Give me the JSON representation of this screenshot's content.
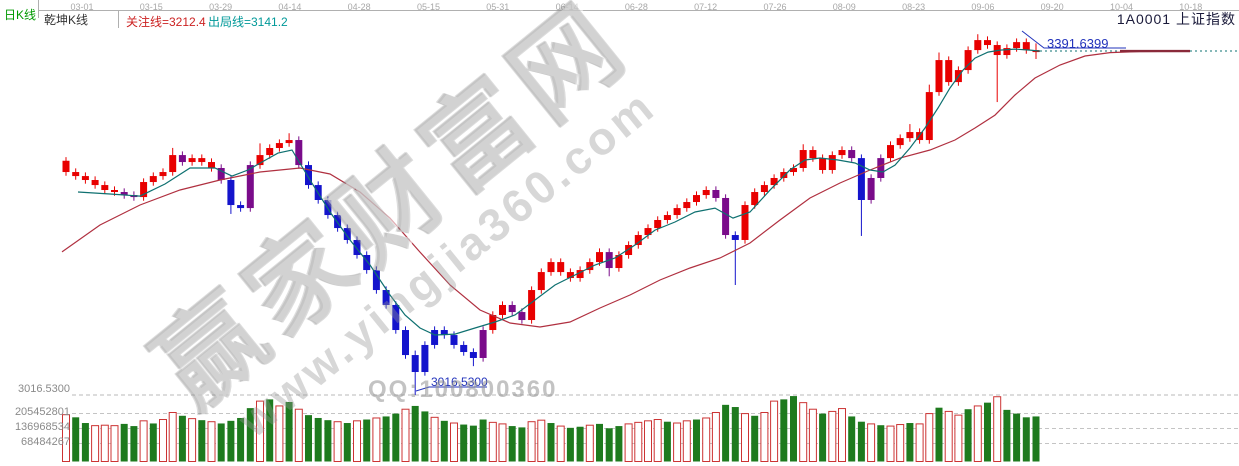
{
  "header": {
    "period_label": "日K线",
    "indicator_name": "乾坤K线",
    "attention_line_label": "关注线=3212.4",
    "exit_line_label": "出局线=3141.2",
    "symbol_label": "1A0001  上证指数"
  },
  "date_axis": {
    "labels": [
      "03-01",
      "03-15",
      "03-29",
      "04-14",
      "04-28",
      "05-15",
      "05-31",
      "06-14",
      "06-28",
      "07-12",
      "07-26",
      "08-09",
      "08-23",
      "09-06",
      "09-20",
      "10-04",
      "10-18"
    ]
  },
  "price_axis": {
    "min_label": "3016.5300"
  },
  "volume_axis": {
    "labels": [
      "205452801",
      "136968534",
      "68484267"
    ],
    "values": [
      205452801,
      136968534,
      68484267
    ]
  },
  "annotations": {
    "last_price_label": "3391.6399",
    "low_price_label": "3016.5300"
  },
  "watermark": {
    "title": "赢家财富网",
    "url": "www.yingjia360.com",
    "qq": "QQ:100800360"
  },
  "colors": {
    "candle_up": "#e80000",
    "candle_special": "#7a0b8a",
    "candle_down": "#1414cc",
    "ma_fast": "#0e7070",
    "ma_slow": "#b03040",
    "flat_line": "#8a2a3a",
    "vol_up_stroke": "#cc3333",
    "vol_down_fill": "#1e7a1e",
    "grid": "#c4c4c4",
    "annotation_blue": "#2233bb",
    "period_green": "#009900",
    "attention_red": "#cc2222",
    "exit_teal": "#009999"
  },
  "chart_data": {
    "type": "candlestick",
    "title": "1A0001 上证指数 日K线 (乾坤K线)",
    "indicator": {
      "name": "乾坤K线",
      "attention_line": 3212.4,
      "exit_line": 3141.2
    },
    "ylim": [
      3016.53,
      3414.6
    ],
    "last_close": 3391.6399,
    "min_price": 3016.53,
    "volume_unit": 68484267,
    "x_dates": [
      "03-01",
      "03-15",
      "03-29",
      "04-14",
      "04-28",
      "05-15",
      "05-31",
      "06-14",
      "06-28",
      "07-12",
      "07-26",
      "08-09",
      "08-23",
      "09-06",
      "09-20",
      "10-04",
      "10-18"
    ],
    "candles": [
      [
        3272.0,
        3276.0,
        3255.7,
        3259.7,
        "r",
        200,
        "r"
      ],
      [
        3259.7,
        3263.7,
        3251.3,
        3255.3,
        "r",
        188,
        "g"
      ],
      [
        3255.3,
        3259.3,
        3247.0,
        3251.0,
        "r",
        162,
        "g"
      ],
      [
        3251.0,
        3255.0,
        3241.5,
        3245.5,
        "r",
        150,
        "r"
      ],
      [
        3245.5,
        3249.5,
        3236.1,
        3240.1,
        "r",
        152,
        "r"
      ],
      [
        3240.1,
        3244.1,
        3233.9,
        3237.9,
        "r",
        150,
        "r"
      ],
      [
        3237.9,
        3241.9,
        3230.6,
        3234.6,
        "p",
        158,
        "g"
      ],
      [
        3234.6,
        3238.6,
        3228.4,
        3232.4,
        "p",
        148,
        "g"
      ],
      [
        3232.4,
        3252.8,
        3228.4,
        3248.8,
        "r",
        172,
        "r"
      ],
      [
        3248.8,
        3259.3,
        3244.8,
        3255.3,
        "r",
        160,
        "g"
      ],
      [
        3255.3,
        3263.7,
        3251.3,
        3259.7,
        "r",
        178,
        "r"
      ],
      [
        3259.7,
        3286.0,
        3255.7,
        3278.2,
        "r",
        210,
        "r"
      ],
      [
        3278.2,
        3282.2,
        3266.6,
        3270.6,
        "p",
        195,
        "g"
      ],
      [
        3270.6,
        3278.9,
        3266.6,
        3274.9,
        "r",
        182,
        "r"
      ],
      [
        3274.9,
        3278.9,
        3266.6,
        3270.6,
        "r",
        175,
        "g"
      ],
      [
        3270.6,
        3274.6,
        3260.1,
        3264.1,
        "r",
        168,
        "r"
      ],
      [
        3264.1,
        3268.1,
        3247.0,
        3251.0,
        "p",
        160,
        "g"
      ],
      [
        3251.0,
        3255.0,
        3214.0,
        3223.7,
        "b",
        172,
        "g"
      ],
      [
        3223.7,
        3227.7,
        3216.4,
        3220.4,
        "b",
        185,
        "g"
      ],
      [
        3220.4,
        3271.3,
        3216.4,
        3267.3,
        "p",
        230,
        "g"
      ],
      [
        3267.3,
        3291.0,
        3263.3,
        3278.2,
        "r",
        262,
        "r"
      ],
      [
        3278.2,
        3289.9,
        3274.2,
        3285.9,
        "r",
        270,
        "g"
      ],
      [
        3285.9,
        3295.3,
        3281.9,
        3291.3,
        "r",
        240,
        "r"
      ],
      [
        3291.3,
        3302.0,
        3287.3,
        3294.6,
        "r",
        258,
        "g"
      ],
      [
        3294.6,
        3298.6,
        3263.3,
        3267.3,
        "p",
        225,
        "r"
      ],
      [
        3267.3,
        3271.3,
        3241.5,
        3245.5,
        "b",
        198,
        "g"
      ],
      [
        3245.5,
        3249.5,
        3225.2,
        3229.2,
        "b",
        185,
        "g"
      ],
      [
        3229.2,
        3233.2,
        3208.8,
        3212.8,
        "b",
        175,
        "g"
      ],
      [
        3212.8,
        3216.8,
        3194.6,
        3198.6,
        "b",
        168,
        "r"
      ],
      [
        3198.6,
        3202.6,
        3181.6,
        3185.6,
        "b",
        162,
        "g"
      ],
      [
        3185.6,
        3189.6,
        3165.2,
        3169.2,
        "b",
        172,
        "r"
      ],
      [
        3169.2,
        3173.2,
        3148.8,
        3152.8,
        "b",
        178,
        "g"
      ],
      [
        3152.8,
        3156.8,
        3127.0,
        3131.0,
        "b",
        185,
        "r"
      ],
      [
        3131.0,
        3135.0,
        3110.7,
        3114.7,
        "b",
        192,
        "g"
      ],
      [
        3114.7,
        3118.7,
        3083.4,
        3087.4,
        "b",
        205,
        "g"
      ],
      [
        3087.4,
        3091.4,
        3056.1,
        3060.1,
        "b",
        225,
        "r"
      ],
      [
        3060.1,
        3065.0,
        3016.53,
        3041.6,
        "b",
        240,
        "g"
      ],
      [
        3041.6,
        3075.1,
        3037.6,
        3071.1,
        "b",
        215,
        "g"
      ],
      [
        3071.1,
        3091.4,
        3067.1,
        3087.4,
        "b",
        188,
        "r"
      ],
      [
        3087.4,
        3091.4,
        3077.9,
        3081.9,
        "b",
        172,
        "g"
      ],
      [
        3081.9,
        3085.9,
        3067.1,
        3071.1,
        "b",
        162,
        "r"
      ],
      [
        3071.1,
        3075.1,
        3059.4,
        3063.4,
        "b",
        155,
        "g"
      ],
      [
        3063.4,
        3067.4,
        3048.0,
        3056.9,
        "b",
        150,
        "g"
      ],
      [
        3056.9,
        3091.4,
        3052.9,
        3087.4,
        "p",
        178,
        "g"
      ],
      [
        3087.4,
        3107.8,
        3083.4,
        3103.8,
        "r",
        165,
        "r"
      ],
      [
        3103.8,
        3118.7,
        3099.8,
        3114.7,
        "r",
        158,
        "r"
      ],
      [
        3114.7,
        3118.7,
        3103.0,
        3107.0,
        "p",
        148,
        "g"
      ],
      [
        3107.0,
        3111.0,
        3094.3,
        3098.3,
        "p",
        142,
        "g"
      ],
      [
        3098.3,
        3135.0,
        3094.3,
        3131.0,
        "r",
        168,
        "r"
      ],
      [
        3131.0,
        3154.6,
        3127.0,
        3150.6,
        "r",
        175,
        "r"
      ],
      [
        3150.6,
        3165.5,
        3146.6,
        3161.5,
        "r",
        162,
        "g"
      ],
      [
        3161.5,
        3165.5,
        3146.6,
        3150.6,
        "r",
        148,
        "r"
      ],
      [
        3150.6,
        3154.6,
        3140.1,
        3144.1,
        "r",
        140,
        "g"
      ],
      [
        3144.1,
        3156.8,
        3140.1,
        3152.8,
        "r",
        145,
        "g"
      ],
      [
        3152.8,
        3165.5,
        3148.8,
        3161.5,
        "r",
        152,
        "r"
      ],
      [
        3161.5,
        3176.4,
        3157.5,
        3172.4,
        "r",
        158,
        "g"
      ],
      [
        3172.4,
        3176.4,
        3146.0,
        3155.0,
        "p",
        138,
        "g"
      ],
      [
        3155.0,
        3173.2,
        3151.0,
        3169.2,
        "r",
        148,
        "g"
      ],
      [
        3169.2,
        3184.1,
        3165.2,
        3180.1,
        "r",
        158,
        "r"
      ],
      [
        3180.1,
        3195.0,
        3176.1,
        3191.0,
        "r",
        165,
        "r"
      ],
      [
        3191.0,
        3202.6,
        3187.0,
        3198.6,
        "r",
        172,
        "r"
      ],
      [
        3198.6,
        3211.4,
        3194.6,
        3207.4,
        "r",
        178,
        "r"
      ],
      [
        3207.4,
        3216.8,
        3203.4,
        3212.8,
        "r",
        168,
        "g"
      ],
      [
        3212.8,
        3224.4,
        3208.8,
        3220.4,
        "r",
        162,
        "r"
      ],
      [
        3220.4,
        3231.0,
        3216.4,
        3227.0,
        "r",
        172,
        "r"
      ],
      [
        3227.0,
        3238.6,
        3223.0,
        3234.6,
        "r",
        178,
        "g"
      ],
      [
        3234.6,
        3244.1,
        3230.6,
        3240.1,
        "r",
        185,
        "r"
      ],
      [
        3240.1,
        3244.1,
        3227.4,
        3231.4,
        "p",
        210,
        "r"
      ],
      [
        3231.4,
        3235.4,
        3187.0,
        3191.0,
        "p",
        245,
        "g"
      ],
      [
        3191.0,
        3195.0,
        3136.5,
        3185.6,
        "b",
        235,
        "g"
      ],
      [
        3185.6,
        3227.7,
        3181.6,
        3223.7,
        "r",
        205,
        "r"
      ],
      [
        3223.7,
        3241.9,
        3219.7,
        3237.9,
        "r",
        195,
        "g"
      ],
      [
        3237.9,
        3249.5,
        3233.9,
        3245.5,
        "r",
        210,
        "r"
      ],
      [
        3245.5,
        3257.2,
        3241.5,
        3253.2,
        "r",
        262,
        "r"
      ],
      [
        3253.2,
        3263.7,
        3249.2,
        3259.7,
        "r",
        270,
        "g"
      ],
      [
        3259.7,
        3268.1,
        3255.7,
        3264.1,
        "r",
        285,
        "g"
      ],
      [
        3264.1,
        3290.0,
        3260.1,
        3283.7,
        "r",
        255,
        "r"
      ],
      [
        3283.7,
        3287.7,
        3270.9,
        3274.9,
        "r",
        225,
        "r"
      ],
      [
        3274.9,
        3278.9,
        3257.9,
        3261.9,
        "r",
        205,
        "g"
      ],
      [
        3261.9,
        3282.2,
        3257.9,
        3278.2,
        "r",
        215,
        "r"
      ],
      [
        3278.2,
        3287.7,
        3274.2,
        3283.7,
        "r",
        228,
        "r"
      ],
      [
        3283.7,
        3287.7,
        3270.9,
        3274.9,
        "p",
        192,
        "g"
      ],
      [
        3274.9,
        3278.9,
        3190.0,
        3229.2,
        "b",
        168,
        "g"
      ],
      [
        3229.2,
        3257.2,
        3225.2,
        3253.2,
        "p",
        158,
        "r"
      ],
      [
        3253.2,
        3278.9,
        3249.2,
        3274.9,
        "p",
        152,
        "g"
      ],
      [
        3274.9,
        3293.1,
        3270.9,
        3289.1,
        "r",
        148,
        "r"
      ],
      [
        3289.1,
        3300.7,
        3285.1,
        3296.7,
        "r",
        155,
        "r"
      ],
      [
        3296.7,
        3312.0,
        3292.7,
        3303.3,
        "r",
        162,
        "g"
      ],
      [
        3303.3,
        3307.3,
        3290.6,
        3294.6,
        "r",
        158,
        "r"
      ],
      [
        3294.6,
        3355.0,
        3290.6,
        3346.9,
        "r",
        205,
        "r"
      ],
      [
        3346.9,
        3390.0,
        3342.9,
        3381.8,
        "r",
        232,
        "g"
      ],
      [
        3381.8,
        3385.8,
        3353.8,
        3357.8,
        "r",
        215,
        "r"
      ],
      [
        3357.8,
        3374.9,
        3353.8,
        3370.9,
        "r",
        198,
        "r"
      ],
      [
        3370.9,
        3396.7,
        3366.9,
        3392.7,
        "r",
        225,
        "g"
      ],
      [
        3392.7,
        3410.0,
        3388.7,
        3403.6,
        "r",
        240,
        "r"
      ],
      [
        3403.6,
        3407.6,
        3394.2,
        3398.2,
        "r",
        255,
        "g"
      ],
      [
        3398.2,
        3402.2,
        3336.0,
        3387.3,
        "r",
        282,
        "r"
      ],
      [
        3387.3,
        3398.9,
        3383.3,
        3394.9,
        "r",
        222,
        "g"
      ],
      [
        3394.9,
        3405.4,
        3390.9,
        3401.4,
        "r",
        205,
        "g"
      ],
      [
        3401.4,
        3405.4,
        3388.7,
        3392.7,
        "r",
        188,
        "g"
      ],
      [
        3392.7,
        3400.0,
        3383.0,
        3391.6399,
        "r",
        192,
        "g"
      ]
    ],
    "ma_fast_points": [
      [
        78,
        3237.9
      ],
      [
        110,
        3235.7
      ],
      [
        140,
        3233.5
      ],
      [
        165,
        3246.6
      ],
      [
        190,
        3264.1
      ],
      [
        215,
        3264.1
      ],
      [
        232,
        3255.3
      ],
      [
        248,
        3261.9
      ],
      [
        262,
        3270.6
      ],
      [
        278,
        3280.4
      ],
      [
        292,
        3283.7
      ],
      [
        310,
        3251.0
      ],
      [
        330,
        3216.1
      ],
      [
        350,
        3185.6
      ],
      [
        370,
        3158.3
      ],
      [
        390,
        3125.6
      ],
      [
        405,
        3103.8
      ],
      [
        420,
        3089.6
      ],
      [
        435,
        3082.0
      ],
      [
        455,
        3083.0
      ],
      [
        475,
        3089.6
      ],
      [
        495,
        3096.1
      ],
      [
        515,
        3103.8
      ],
      [
        535,
        3120.1
      ],
      [
        555,
        3136.5
      ],
      [
        575,
        3147.4
      ],
      [
        595,
        3158.3
      ],
      [
        615,
        3165.9
      ],
      [
        635,
        3180.1
      ],
      [
        655,
        3196.4
      ],
      [
        675,
        3205.2
      ],
      [
        695,
        3216.1
      ],
      [
        715,
        3220.4
      ],
      [
        733,
        3209.5
      ],
      [
        750,
        3216.1
      ],
      [
        770,
        3240.0
      ],
      [
        790,
        3262.0
      ],
      [
        805,
        3272.8
      ],
      [
        820,
        3275.0
      ],
      [
        838,
        3272.8
      ],
      [
        855,
        3269.5
      ],
      [
        870,
        3261.9
      ],
      [
        883,
        3259.7
      ],
      [
        895,
        3267.3
      ],
      [
        910,
        3285.9
      ],
      [
        925,
        3307.7
      ],
      [
        938,
        3329.5
      ],
      [
        950,
        3351.3
      ],
      [
        963,
        3370.9
      ],
      [
        975,
        3384.0
      ],
      [
        988,
        3390.5
      ],
      [
        1000,
        3392.7
      ],
      [
        1015,
        3393.8
      ],
      [
        1030,
        3392.7
      ],
      [
        1040,
        3391.6
      ]
    ],
    "ma_slow_points": [
      [
        62,
        3172.6
      ],
      [
        100,
        3201.9
      ],
      [
        140,
        3223.7
      ],
      [
        180,
        3240.1
      ],
      [
        220,
        3251.0
      ],
      [
        260,
        3259.7
      ],
      [
        300,
        3264.1
      ],
      [
        330,
        3257.6
      ],
      [
        360,
        3237.9
      ],
      [
        390,
        3209.5
      ],
      [
        420,
        3172.4
      ],
      [
        450,
        3136.5
      ],
      [
        480,
        3109.2
      ],
      [
        510,
        3095.0
      ],
      [
        540,
        3090.7
      ],
      [
        570,
        3096.1
      ],
      [
        600,
        3111.4
      ],
      [
        630,
        3125.6
      ],
      [
        660,
        3141.9
      ],
      [
        690,
        3155.0
      ],
      [
        720,
        3165.9
      ],
      [
        750,
        3182.3
      ],
      [
        780,
        3207.4
      ],
      [
        810,
        3231.4
      ],
      [
        840,
        3247.7
      ],
      [
        870,
        3261.9
      ],
      [
        900,
        3274.9
      ],
      [
        930,
        3283.7
      ],
      [
        955,
        3294.6
      ],
      [
        975,
        3307.7
      ],
      [
        995,
        3321.8
      ],
      [
        1015,
        3343.7
      ],
      [
        1035,
        3362.2
      ],
      [
        1060,
        3376.4
      ],
      [
        1085,
        3386.2
      ],
      [
        1110,
        3390.0
      ],
      [
        1140,
        3391.1
      ],
      [
        1190,
        3391.6
      ]
    ]
  }
}
